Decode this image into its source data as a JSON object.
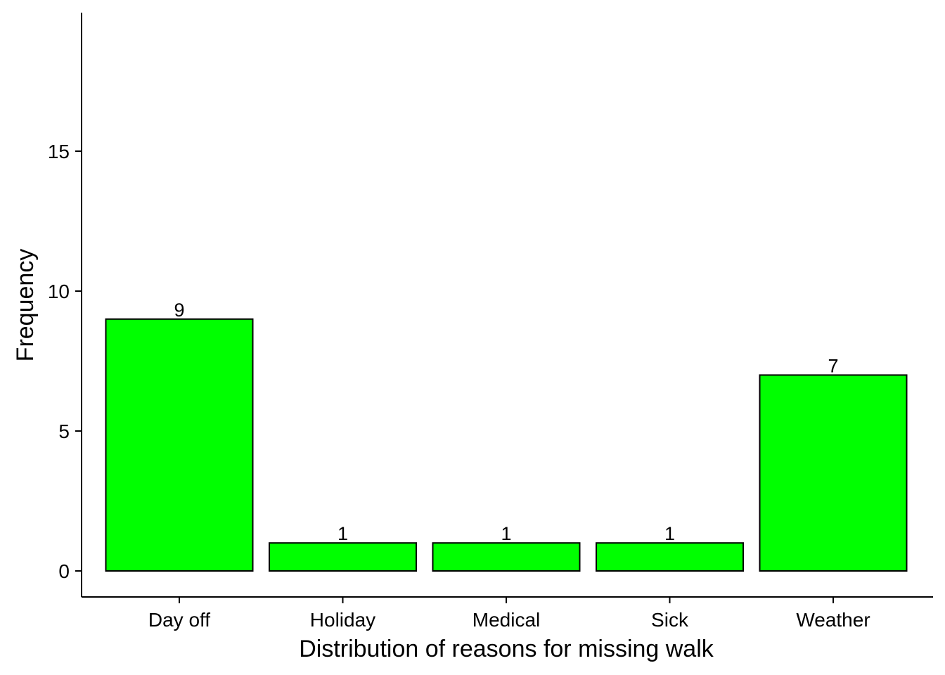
{
  "chart_data": {
    "type": "bar",
    "categories": [
      "Day off",
      "Holiday",
      "Medical",
      "Sick",
      "Weather"
    ],
    "values": [
      9,
      1,
      1,
      1,
      7
    ],
    "data_labels": [
      "9",
      "1",
      "1",
      "1",
      "7"
    ],
    "title": "",
    "xlabel": "Distribution of reasons for missing walk",
    "ylabel": "Frequency",
    "ylim": [
      -0.9,
      20
    ],
    "yticks": [
      0,
      5,
      10,
      15
    ],
    "ytick_labels": [
      "0",
      "5",
      "10",
      "15"
    ],
    "bar_color": "#00ff00",
    "bar_edge_color": "#000000",
    "grid": false,
    "legend": "none"
  }
}
